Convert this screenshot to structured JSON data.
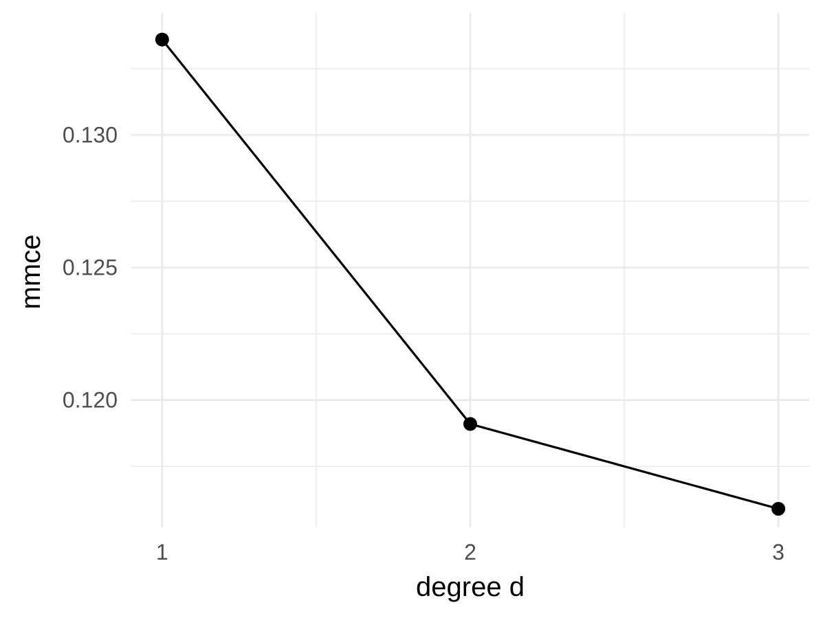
{
  "chart_data": {
    "type": "line",
    "xlabel": "degree d",
    "ylabel": "mmce",
    "x": [
      1,
      2,
      3
    ],
    "series": [
      {
        "values": [
          0.1336,
          0.1191,
          0.1159
        ]
      }
    ],
    "xlim": [
      0.9,
      3.1
    ],
    "ylim": [
      0.1152,
      0.1346
    ],
    "x_ticks": [
      1,
      2,
      3
    ],
    "x_tick_labels": [
      "1",
      "2",
      "3"
    ],
    "x_minor_ticks": [
      1.5,
      2.5
    ],
    "y_ticks": [
      0.12,
      0.125,
      0.13
    ],
    "y_tick_labels": [
      "0.120",
      "0.125",
      "0.130"
    ],
    "y_minor_ticks": [
      0.1175,
      0.1225,
      0.1275,
      0.1325
    ],
    "grid": true,
    "line_color": "#000000",
    "grid_color": "#ebebeb",
    "tick_label_color": "#4d4d4d"
  }
}
